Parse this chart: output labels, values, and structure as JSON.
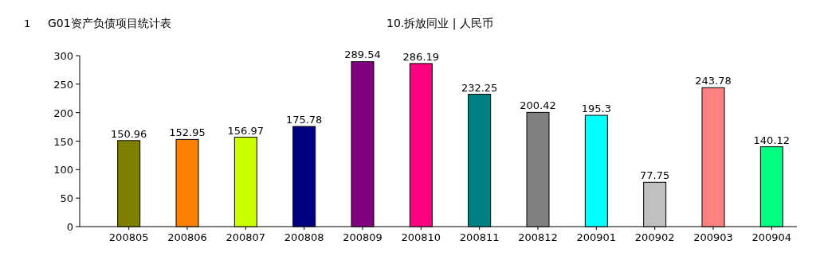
{
  "chart_data": {
    "type": "bar",
    "title": "G01资产负债项目统计表",
    "subtitle": "10.拆放同业 | 人民币",
    "annotations": [
      "1"
    ],
    "categories": [
      "200805",
      "200806",
      "200807",
      "200808",
      "200809",
      "200810",
      "200811",
      "200812",
      "200901",
      "200902",
      "200903",
      "200904"
    ],
    "values": [
      150.96,
      152.95,
      156.97,
      175.78,
      289.54,
      286.19,
      232.25,
      200.42,
      195.3,
      77.75,
      243.78,
      140.12
    ],
    "colors": [
      "#808000",
      "#ff8000",
      "#ccff00",
      "#000080",
      "#800080",
      "#ff0080",
      "#008080",
      "#808080",
      "#00ffff",
      "#c0c0c0",
      "#ff8080",
      "#00ff80"
    ],
    "ylim": [
      0,
      300
    ],
    "yticks": [
      0,
      50,
      100,
      150,
      200,
      250,
      300
    ],
    "data_labels": true,
    "grid": false
  }
}
